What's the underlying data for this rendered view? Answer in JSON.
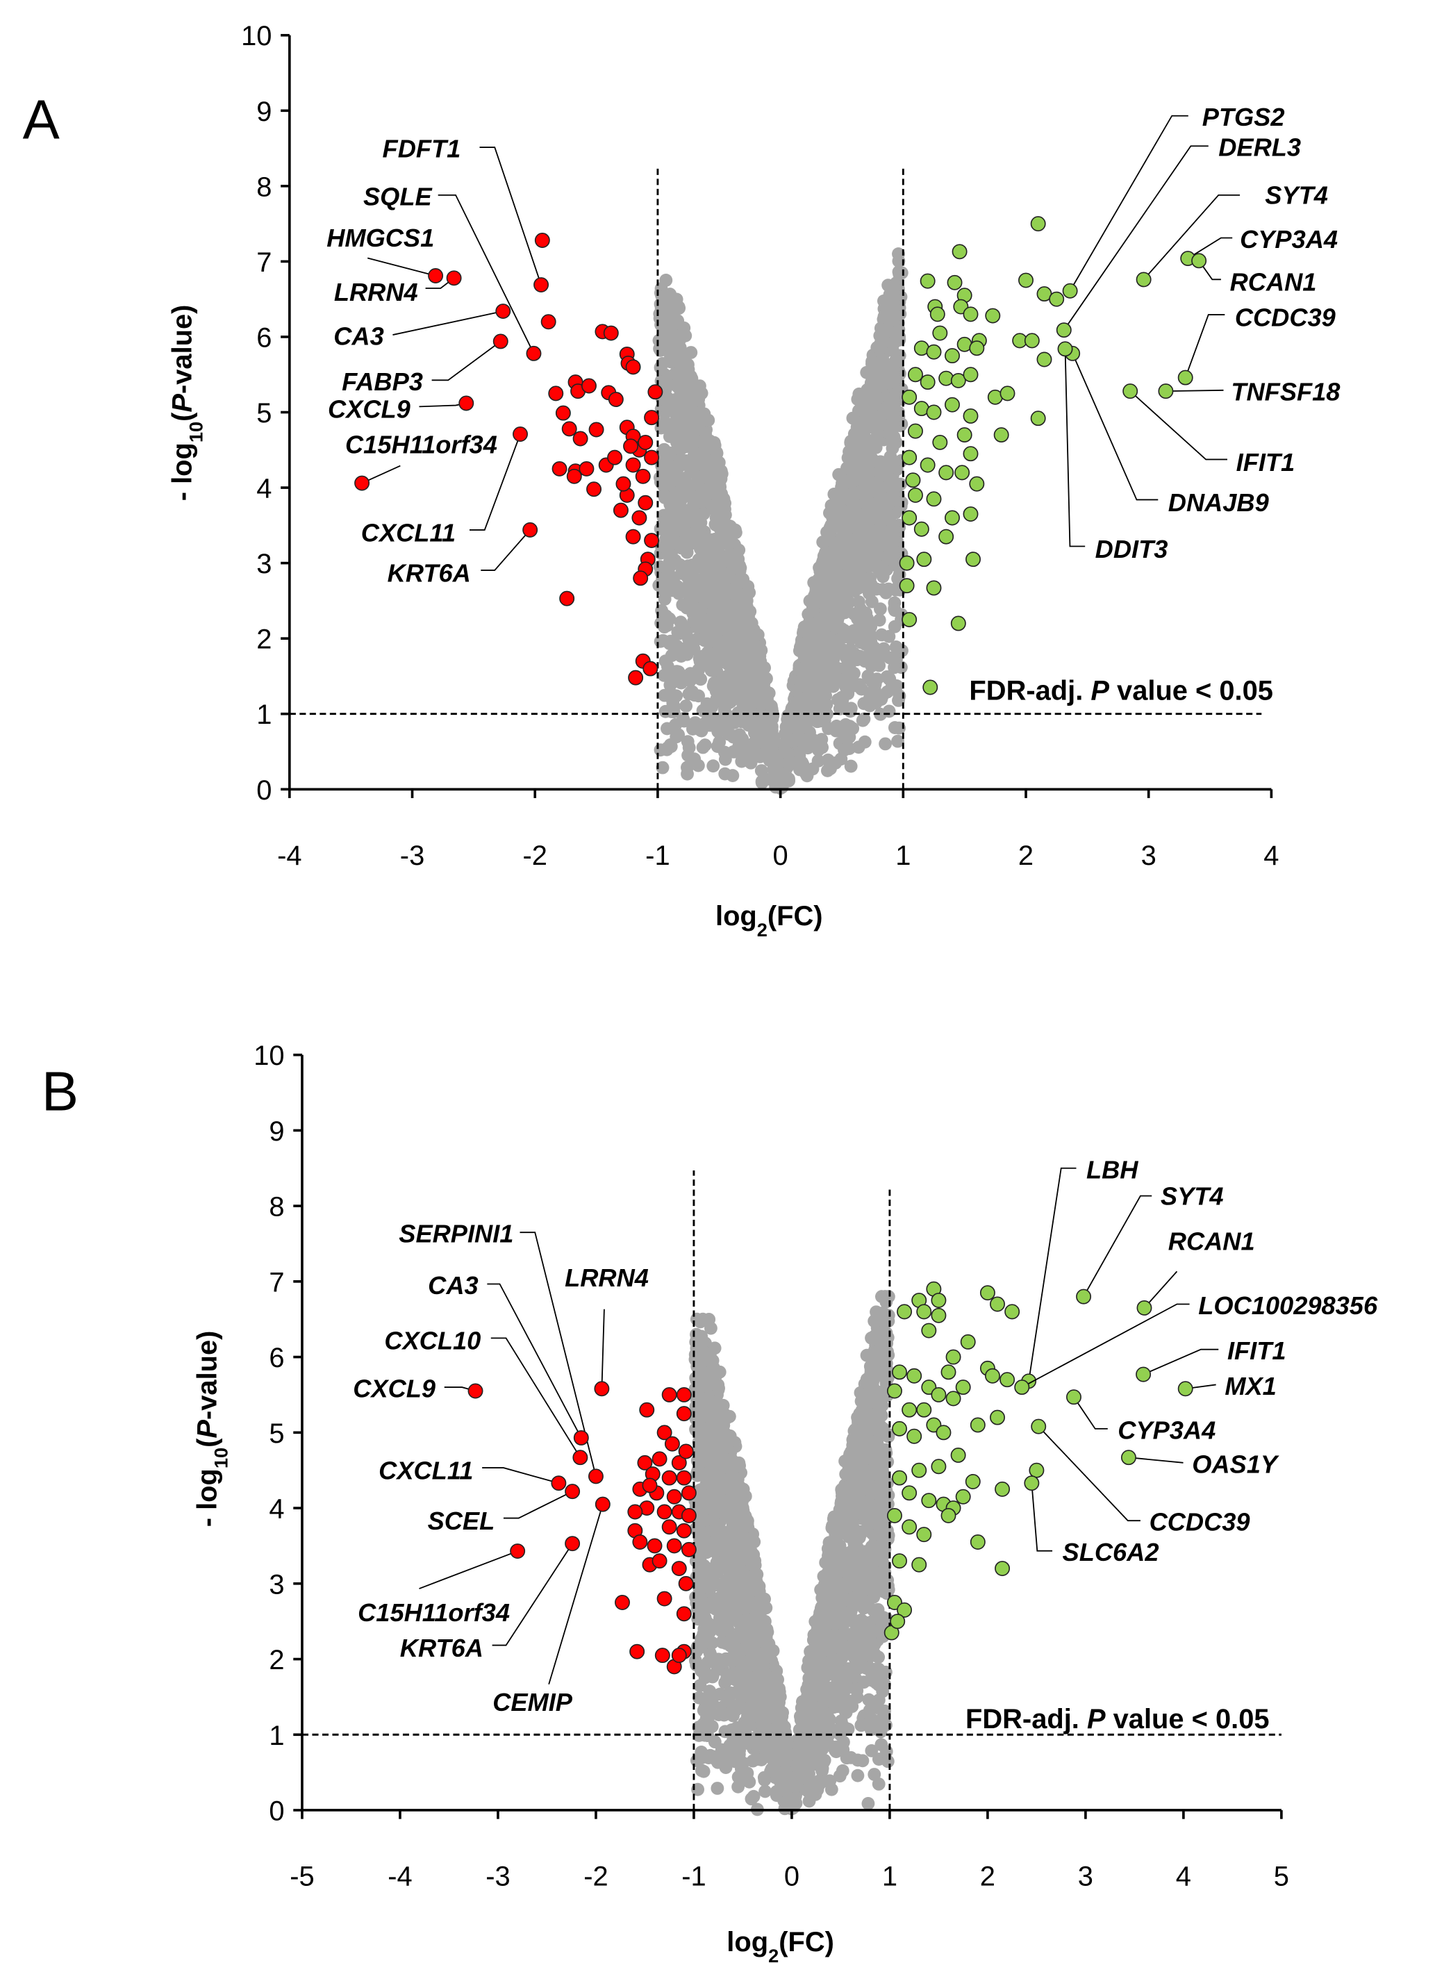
{
  "chart_data": [
    {
      "panel": "A",
      "type": "scatter",
      "title": "",
      "xlabel": [
        {
          "t": "log"
        },
        {
          "t": "2",
          "sub": true
        },
        {
          "t": "(FC)"
        }
      ],
      "ylabel": [
        {
          "t": "- log"
        },
        {
          "t": "10",
          "sub": true
        },
        {
          "t": "("
        },
        {
          "t": "P",
          "italic": true
        },
        {
          "t": "-value)"
        }
      ],
      "xlim": [
        -4,
        4
      ],
      "ylim": [
        0,
        10
      ],
      "xticks": [
        "-4",
        "-3",
        "-2",
        "-1",
        "0",
        "1",
        "2",
        "3",
        "4"
      ],
      "yticks": [
        "0",
        "1",
        "2",
        "3",
        "4",
        "5",
        "6",
        "7",
        "8",
        "9",
        "10"
      ],
      "grid": false,
      "fc_threshold": [
        -1,
        1
      ],
      "p_threshold": 1,
      "annotation": {
        "pre": "FDR-adj. ",
        "italic": "P",
        "post": " value < 0.05",
        "marker_color": "#92d050"
      },
      "colors": {
        "down": "#ff0000",
        "up": "#92d050",
        "ns": "#a6a6a6"
      },
      "down_points": [
        [
          -1.94,
          7.28
        ],
        [
          -1.89,
          6.2
        ],
        [
          -1.45,
          6.07
        ],
        [
          -1.38,
          6.05
        ],
        [
          -1.25,
          5.77
        ],
        [
          -1.24,
          5.65
        ],
        [
          -1.2,
          5.6
        ],
        [
          -1.83,
          5.25
        ],
        [
          -1.67,
          5.4
        ],
        [
          -1.65,
          5.28
        ],
        [
          -1.56,
          5.35
        ],
        [
          -1.4,
          5.26
        ],
        [
          -1.34,
          5.17
        ],
        [
          -1.02,
          5.27
        ],
        [
          -1.77,
          4.99
        ],
        [
          -1.72,
          4.78
        ],
        [
          -1.5,
          4.77
        ],
        [
          -1.63,
          4.65
        ],
        [
          -1.25,
          4.8
        ],
        [
          -1.2,
          4.68
        ],
        [
          -1.05,
          4.93
        ],
        [
          -1.8,
          4.25
        ],
        [
          -1.67,
          4.22
        ],
        [
          -1.58,
          4.25
        ],
        [
          -1.42,
          4.3
        ],
        [
          -1.35,
          4.4
        ],
        [
          -1.15,
          4.5
        ],
        [
          -1.1,
          4.6
        ],
        [
          -1.2,
          4.3
        ],
        [
          -1.05,
          4.4
        ],
        [
          -1.52,
          3.98
        ],
        [
          -1.68,
          4.15
        ],
        [
          -1.25,
          3.9
        ],
        [
          -1.1,
          3.8
        ],
        [
          -1.3,
          3.7
        ],
        [
          -1.15,
          3.6
        ],
        [
          -1.2,
          3.35
        ],
        [
          -1.05,
          3.3
        ],
        [
          -1.08,
          3.05
        ],
        [
          -1.1,
          2.92
        ],
        [
          -1.14,
          2.8
        ],
        [
          -1.74,
          2.53
        ],
        [
          -1.12,
          1.7
        ],
        [
          -1.06,
          1.6
        ],
        [
          -1.18,
          1.48
        ],
        [
          -1.28,
          4.05
        ],
        [
          -1.22,
          4.55
        ],
        [
          -1.12,
          4.15
        ]
      ],
      "up_points": [
        [
          2.1,
          7.5
        ],
        [
          1.46,
          7.13
        ],
        [
          1.2,
          6.74
        ],
        [
          1.42,
          6.72
        ],
        [
          1.5,
          6.55
        ],
        [
          1.26,
          6.4
        ],
        [
          1.28,
          6.3
        ],
        [
          1.47,
          6.4
        ],
        [
          1.73,
          6.28
        ],
        [
          1.3,
          6.05
        ],
        [
          1.55,
          6.3
        ],
        [
          1.62,
          5.95
        ],
        [
          2.0,
          6.75
        ],
        [
          2.15,
          6.57
        ],
        [
          2.25,
          6.5
        ],
        [
          1.15,
          5.85
        ],
        [
          1.25,
          5.8
        ],
        [
          1.4,
          5.75
        ],
        [
          1.5,
          5.9
        ],
        [
          1.6,
          5.85
        ],
        [
          1.95,
          5.95
        ],
        [
          2.05,
          5.95
        ],
        [
          2.15,
          5.7
        ],
        [
          1.1,
          5.5
        ],
        [
          1.2,
          5.4
        ],
        [
          1.35,
          5.45
        ],
        [
          1.45,
          5.42
        ],
        [
          1.55,
          5.5
        ],
        [
          1.75,
          5.2
        ],
        [
          1.85,
          5.25
        ],
        [
          2.1,
          4.92
        ],
        [
          1.05,
          5.2
        ],
        [
          1.15,
          5.05
        ],
        [
          1.25,
          5.0
        ],
        [
          1.4,
          5.1
        ],
        [
          1.55,
          4.95
        ],
        [
          1.8,
          4.7
        ],
        [
          1.1,
          4.75
        ],
        [
          1.3,
          4.6
        ],
        [
          1.5,
          4.7
        ],
        [
          1.55,
          4.45
        ],
        [
          1.05,
          4.4
        ],
        [
          1.2,
          4.3
        ],
        [
          1.35,
          4.2
        ],
        [
          1.48,
          4.2
        ],
        [
          1.6,
          4.05
        ],
        [
          1.1,
          3.9
        ],
        [
          1.25,
          3.85
        ],
        [
          1.4,
          3.6
        ],
        [
          1.55,
          3.65
        ],
        [
          1.05,
          3.6
        ],
        [
          1.15,
          3.45
        ],
        [
          1.35,
          3.35
        ],
        [
          1.57,
          3.05
        ],
        [
          1.17,
          3.05
        ],
        [
          1.25,
          2.67
        ],
        [
          1.05,
          2.25
        ],
        [
          1.45,
          2.2
        ],
        [
          1.03,
          2.7
        ],
        [
          1.03,
          3.0
        ],
        [
          1.08,
          4.1
        ]
      ],
      "labeled": [
        {
          "gene": "FDFT1",
          "x": -1.95,
          "y": 6.69,
          "dir": "down"
        },
        {
          "gene": "SQLE",
          "x": -2.01,
          "y": 5.78,
          "dir": "down"
        },
        {
          "gene": "HMGCS1",
          "x": -2.81,
          "y": 6.81,
          "dir": "down"
        },
        {
          "gene": "LRRN4",
          "x": -2.66,
          "y": 6.78,
          "dir": "down"
        },
        {
          "gene": "CA3",
          "x": -2.26,
          "y": 6.34,
          "dir": "down"
        },
        {
          "gene": "FABP3",
          "x": -2.28,
          "y": 5.94,
          "dir": "down"
        },
        {
          "gene": "CXCL9",
          "x": -2.56,
          "y": 5.12,
          "dir": "down"
        },
        {
          "gene": "C15H11orf34",
          "x": -3.41,
          "y": 4.06,
          "dir": "down"
        },
        {
          "gene": "CXCL11",
          "x": -2.12,
          "y": 4.71,
          "dir": "down"
        },
        {
          "gene": "KRT6A",
          "x": -2.04,
          "y": 3.44,
          "dir": "down"
        },
        {
          "gene": "PTGS2",
          "x": 2.36,
          "y": 6.61,
          "dir": "up"
        },
        {
          "gene": "DERL3",
          "x": 2.31,
          "y": 6.09,
          "dir": "up"
        },
        {
          "gene": "SYT4",
          "x": 2.96,
          "y": 6.76,
          "dir": "up"
        },
        {
          "gene": "CYP3A4",
          "x": 3.32,
          "y": 7.04,
          "dir": "up"
        },
        {
          "gene": "RCAN1",
          "x": 3.41,
          "y": 7.01,
          "dir": "up"
        },
        {
          "gene": "CCDC39",
          "x": 3.3,
          "y": 5.46,
          "dir": "up"
        },
        {
          "gene": "TNFSF18",
          "x": 3.14,
          "y": 5.28,
          "dir": "up"
        },
        {
          "gene": "IFIT1",
          "x": 2.85,
          "y": 5.28,
          "dir": "up"
        },
        {
          "gene": "DNAJB9",
          "x": 2.38,
          "y": 5.78,
          "dir": "up"
        },
        {
          "gene": "DDIT3",
          "x": 2.32,
          "y": 5.84,
          "dir": "up"
        }
      ]
    },
    {
      "panel": "B",
      "type": "scatter",
      "title": "",
      "xlabel": [
        {
          "t": "log"
        },
        {
          "t": "2",
          "sub": true
        },
        {
          "t": "(FC)"
        }
      ],
      "ylabel": [
        {
          "t": "- log"
        },
        {
          "t": "10",
          "sub": true
        },
        {
          "t": "("
        },
        {
          "t": "P",
          "italic": true
        },
        {
          "t": "-value)"
        }
      ],
      "xlim": [
        -5,
        5
      ],
      "ylim": [
        0,
        10
      ],
      "xticks": [
        "-5",
        "-4",
        "-3",
        "-2",
        "-1",
        "0",
        "1",
        "2",
        "3",
        "4",
        "5"
      ],
      "yticks": [
        "0",
        "1",
        "2",
        "3",
        "4",
        "5",
        "6",
        "7",
        "8",
        "9",
        "10"
      ],
      "grid": false,
      "fc_threshold": [
        -1,
        1
      ],
      "p_threshold": 1,
      "annotation": {
        "pre": "FDR-adj. ",
        "italic": "P",
        "post": " value < 0.05"
      },
      "colors": {
        "down": "#ff0000",
        "up": "#92d050",
        "ns": "#a6a6a6"
      },
      "down_points": [
        [
          -1.25,
          5.5
        ],
        [
          -1.1,
          5.5
        ],
        [
          -1.48,
          5.3
        ],
        [
          -1.1,
          5.25
        ],
        [
          -1.3,
          5.0
        ],
        [
          -1.5,
          4.6
        ],
        [
          -1.35,
          4.65
        ],
        [
          -1.15,
          4.6
        ],
        [
          -1.42,
          4.45
        ],
        [
          -1.25,
          4.4
        ],
        [
          -1.1,
          4.4
        ],
        [
          -1.55,
          4.25
        ],
        [
          -1.38,
          4.2
        ],
        [
          -1.2,
          4.15
        ],
        [
          -1.05,
          4.2
        ],
        [
          -1.48,
          4.0
        ],
        [
          -1.3,
          3.95
        ],
        [
          -1.15,
          3.95
        ],
        [
          -1.05,
          3.9
        ],
        [
          -1.6,
          3.7
        ],
        [
          -1.25,
          3.75
        ],
        [
          -1.1,
          3.7
        ],
        [
          -1.55,
          3.55
        ],
        [
          -1.4,
          3.5
        ],
        [
          -1.2,
          3.5
        ],
        [
          -1.05,
          3.45
        ],
        [
          -1.45,
          3.25
        ],
        [
          -1.15,
          3.2
        ],
        [
          -1.08,
          3.0
        ],
        [
          -1.3,
          2.8
        ],
        [
          -1.1,
          2.6
        ],
        [
          -1.73,
          2.75
        ],
        [
          -1.58,
          2.1
        ],
        [
          -1.32,
          2.05
        ],
        [
          -1.1,
          2.1
        ],
        [
          -1.2,
          1.9
        ],
        [
          -1.15,
          2.05
        ],
        [
          -1.6,
          3.95
        ],
        [
          -1.45,
          4.3
        ],
        [
          -1.22,
          4.85
        ],
        [
          -1.08,
          4.75
        ],
        [
          -1.35,
          3.3
        ]
      ],
      "up_points": [
        [
          1.45,
          6.9
        ],
        [
          1.5,
          6.75
        ],
        [
          1.3,
          6.75
        ],
        [
          1.35,
          6.6
        ],
        [
          2.0,
          6.85
        ],
        [
          2.1,
          6.7
        ],
        [
          1.15,
          6.6
        ],
        [
          2.25,
          6.6
        ],
        [
          1.5,
          6.55
        ],
        [
          1.4,
          6.35
        ],
        [
          1.65,
          6.0
        ],
        [
          1.8,
          6.2
        ],
        [
          1.6,
          5.8
        ],
        [
          1.75,
          5.6
        ],
        [
          2.0,
          5.85
        ],
        [
          2.05,
          5.75
        ],
        [
          2.2,
          5.7
        ],
        [
          1.1,
          5.8
        ],
        [
          1.25,
          5.75
        ],
        [
          1.4,
          5.6
        ],
        [
          1.5,
          5.5
        ],
        [
          1.65,
          5.45
        ],
        [
          1.05,
          5.55
        ],
        [
          1.2,
          5.3
        ],
        [
          1.35,
          5.3
        ],
        [
          1.45,
          5.1
        ],
        [
          1.55,
          5.0
        ],
        [
          1.1,
          5.05
        ],
        [
          1.25,
          4.95
        ],
        [
          1.9,
          5.1
        ],
        [
          2.1,
          5.2
        ],
        [
          2.5,
          4.5
        ],
        [
          1.7,
          4.7
        ],
        [
          1.5,
          4.55
        ],
        [
          1.3,
          4.5
        ],
        [
          1.1,
          4.4
        ],
        [
          1.2,
          4.2
        ],
        [
          1.4,
          4.1
        ],
        [
          1.55,
          4.05
        ],
        [
          1.65,
          4.0
        ],
        [
          2.15,
          4.25
        ],
        [
          1.85,
          4.35
        ],
        [
          1.05,
          3.9
        ],
        [
          1.2,
          3.75
        ],
        [
          1.35,
          3.65
        ],
        [
          1.9,
          3.55
        ],
        [
          2.15,
          3.2
        ],
        [
          1.1,
          3.3
        ],
        [
          1.3,
          3.25
        ],
        [
          1.05,
          2.75
        ],
        [
          1.15,
          2.65
        ],
        [
          1.02,
          2.35
        ],
        [
          1.08,
          2.5
        ],
        [
          1.6,
          3.9
        ],
        [
          1.75,
          4.15
        ]
      ],
      "labeled": [
        {
          "gene": "SERPINI1",
          "x": -2.0,
          "y": 4.42,
          "dir": "down"
        },
        {
          "gene": "CA3",
          "x": -2.15,
          "y": 4.93,
          "dir": "down"
        },
        {
          "gene": "LRRN4",
          "x": -1.94,
          "y": 5.58,
          "dir": "down"
        },
        {
          "gene": "CXCL10",
          "x": -2.16,
          "y": 4.67,
          "dir": "down"
        },
        {
          "gene": "CXCL9",
          "x": -3.23,
          "y": 5.55,
          "dir": "down"
        },
        {
          "gene": "CXCL11",
          "x": -2.38,
          "y": 4.33,
          "dir": "down"
        },
        {
          "gene": "SCEL",
          "x": -2.24,
          "y": 4.22,
          "dir": "down"
        },
        {
          "gene": "C15H11orf34",
          "x": -2.8,
          "y": 3.43,
          "dir": "down"
        },
        {
          "gene": "KRT6A",
          "x": -2.24,
          "y": 3.53,
          "dir": "down"
        },
        {
          "gene": "CEMIP",
          "x": -1.93,
          "y": 4.05,
          "dir": "down"
        },
        {
          "gene": "LBH",
          "x": 2.42,
          "y": 5.68,
          "dir": "up"
        },
        {
          "gene": "SYT4",
          "x": 2.98,
          "y": 6.8,
          "dir": "up"
        },
        {
          "gene": "RCAN1",
          "x": 3.6,
          "y": 6.65,
          "dir": "up"
        },
        {
          "gene": "LOC100298356",
          "x": 2.35,
          "y": 5.6,
          "dir": "up"
        },
        {
          "gene": "IFIT1",
          "x": 3.59,
          "y": 5.77,
          "dir": "up"
        },
        {
          "gene": "MX1",
          "x": 4.02,
          "y": 5.58,
          "dir": "up"
        },
        {
          "gene": "CYP3A4",
          "x": 2.88,
          "y": 5.47,
          "dir": "up"
        },
        {
          "gene": "OAS1Y",
          "x": 3.44,
          "y": 4.67,
          "dir": "up"
        },
        {
          "gene": "CCDC39",
          "x": 2.52,
          "y": 5.08,
          "dir": "up"
        },
        {
          "gene": "SLC6A2",
          "x": 2.45,
          "y": 4.33,
          "dir": "up"
        }
      ]
    }
  ]
}
